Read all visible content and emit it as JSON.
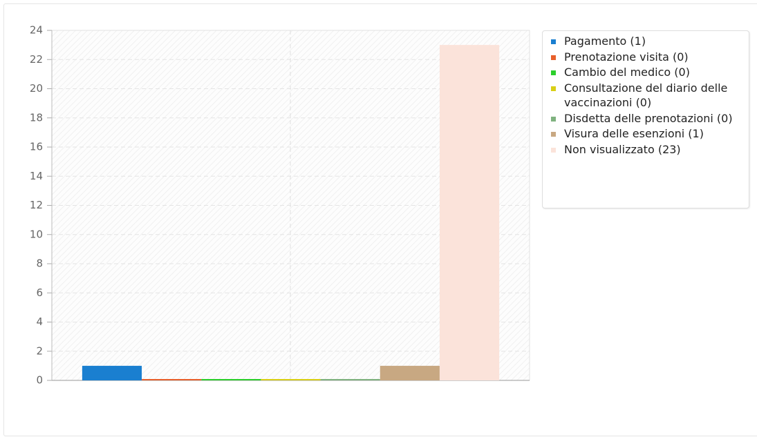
{
  "chart_data": {
    "type": "bar",
    "series": [
      {
        "name": "Pagamento (1)",
        "color": "#1a7fd0",
        "values": [
          1
        ]
      },
      {
        "name": "Prenotazione visita (0)",
        "color": "#e8602c",
        "values": [
          0
        ]
      },
      {
        "name": "Cambio del medico (0)",
        "color": "#2ccf2c",
        "values": [
          0
        ]
      },
      {
        "name": "Consultazione del diario delle vaccinazioni (0)",
        "color": "#d9cf16",
        "values": [
          0
        ]
      },
      {
        "name": "Disdetta delle prenotazioni (0)",
        "color": "#7fb27f",
        "values": [
          0
        ]
      },
      {
        "name": "Visura delle esenzioni (1)",
        "color": "#c8a882",
        "values": [
          1
        ]
      },
      {
        "name": "Non visualizzato (23)",
        "color": "#fbe3da",
        "values": [
          23
        ]
      }
    ],
    "ylim": [
      0,
      24
    ],
    "yticks": [
      0,
      2,
      4,
      6,
      8,
      10,
      12,
      14,
      16,
      18,
      20,
      22,
      24
    ],
    "grid": true,
    "legend": "right"
  }
}
